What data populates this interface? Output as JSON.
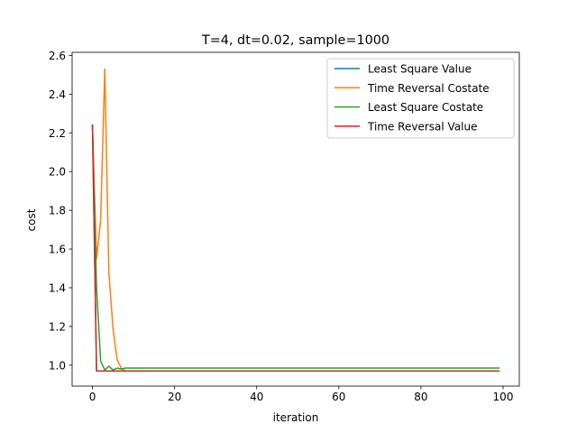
{
  "chart_data": {
    "type": "line",
    "title": "T=4, dt=0.02, sample=1000",
    "xlabel": "iteration",
    "ylabel": "cost",
    "xlim": [
      -4.95,
      103.95
    ],
    "ylim": [
      0.892,
      2.616
    ],
    "xticks": [
      0,
      20,
      40,
      60,
      80,
      100
    ],
    "xtick_labels": [
      "0",
      "20",
      "40",
      "60",
      "80",
      "100"
    ],
    "yticks": [
      1.0,
      1.2,
      1.4,
      1.6,
      1.8,
      2.0,
      2.2,
      2.4,
      2.6
    ],
    "ytick_labels": [
      "1.0",
      "1.2",
      "1.4",
      "1.6",
      "1.8",
      "2.0",
      "2.2",
      "2.4",
      "2.6"
    ],
    "grid": false,
    "legend_position": "top-right",
    "series": [
      {
        "name": "Least Square Value",
        "color": "#1f77b4",
        "points": [
          [
            0,
            2.24
          ],
          [
            1,
            0.97
          ],
          [
            99,
            0.97
          ]
        ]
      },
      {
        "name": "Time Reversal Costate",
        "color": "#ff7f0e",
        "points": [
          [
            0,
            2.24
          ],
          [
            1,
            1.55
          ],
          [
            2,
            1.75
          ],
          [
            3,
            2.53
          ],
          [
            4,
            1.48
          ],
          [
            5,
            1.19
          ],
          [
            6,
            1.03
          ],
          [
            7,
            0.985
          ],
          [
            8,
            0.97
          ],
          [
            9,
            0.97
          ],
          [
            99,
            0.97
          ]
        ]
      },
      {
        "name": "Least Square Costate",
        "color": "#2ca02c",
        "points": [
          [
            0,
            2.24
          ],
          [
            1,
            1.4
          ],
          [
            2,
            1.02
          ],
          [
            3,
            0.975
          ],
          [
            4,
            0.995
          ],
          [
            5,
            0.975
          ],
          [
            6,
            0.985
          ],
          [
            7,
            0.98
          ],
          [
            8,
            0.985
          ],
          [
            99,
            0.985
          ]
        ]
      },
      {
        "name": "Time Reversal Value",
        "color": "#d62728",
        "points": [
          [
            0,
            2.24
          ],
          [
            1,
            0.97
          ],
          [
            99,
            0.97
          ]
        ]
      }
    ]
  }
}
